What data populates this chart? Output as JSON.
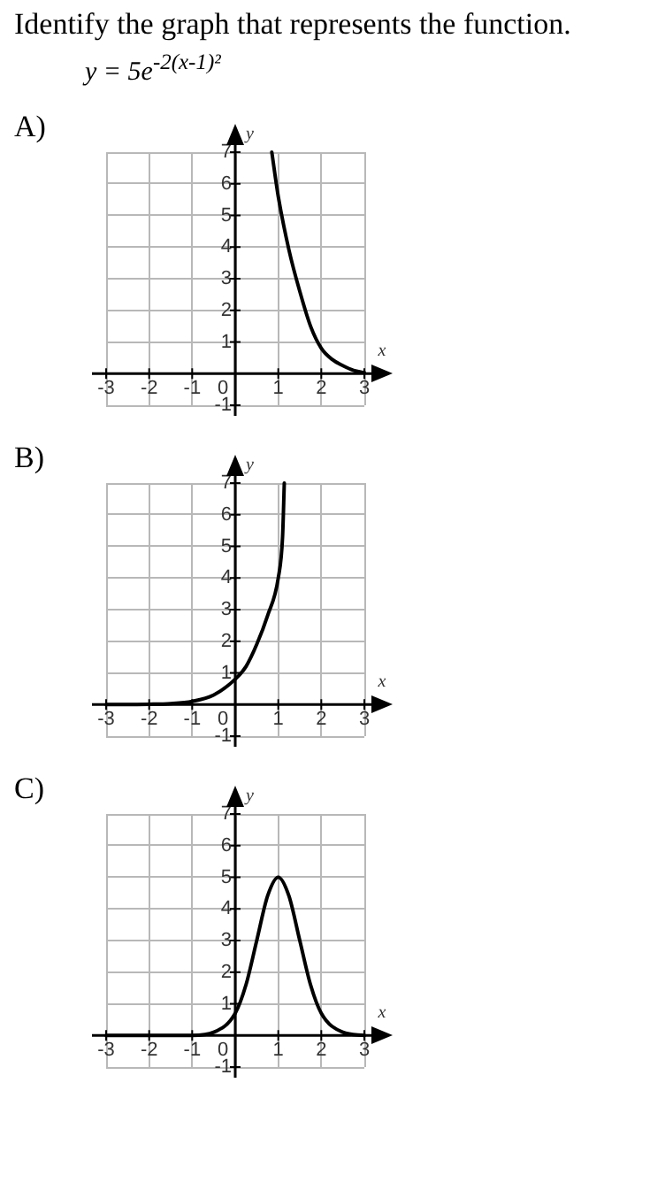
{
  "chart_data": [
    {
      "type": "other",
      "title": "Identify the graph that represents the function.",
      "subtitle": "y = 5e$^{-2(x-1)²}$"
    },
    {
      "type": "line",
      "title": "A)",
      "xlabel": "x",
      "ylabel": "y",
      "color": "#000000",
      "marker": "none",
      "grid": true,
      "x": [
        0.85,
        1,
        1.25,
        1.5,
        1.75,
        2,
        2.25,
        2.5,
        2.75,
        3
      ],
      "values": [
        7,
        5.6,
        3.9,
        2.6,
        1.5,
        0.8,
        0.45,
        0.25,
        0.1,
        0.03
      ],
      "xlim": [
        -3,
        3
      ],
      "ylim": [
        -1,
        7
      ],
      "xticks": [
        -3,
        -2,
        -1,
        0,
        1,
        2,
        3
      ],
      "yticks": [
        -1,
        1,
        2,
        3,
        4,
        5,
        6,
        7
      ]
    },
    {
      "type": "line",
      "title": "B)",
      "xlabel": "x",
      "ylabel": "y",
      "color": "#000000",
      "marker": "none",
      "grid": true,
      "x": [
        -3,
        -2,
        -1.5,
        -1,
        -0.5,
        0,
        0.25,
        0.5,
        0.75,
        1,
        1.1,
        1.14
      ],
      "values": [
        0,
        0.01,
        0.03,
        0.1,
        0.3,
        0.8,
        1.2,
        1.9,
        2.8,
        4,
        5.3,
        7
      ],
      "xlim": [
        -3,
        3
      ],
      "ylim": [
        -1,
        7
      ],
      "xticks": [
        -3,
        -2,
        -1,
        0,
        1,
        2,
        3
      ],
      "yticks": [
        -1,
        1,
        2,
        3,
        4,
        5,
        6,
        7
      ]
    },
    {
      "type": "line",
      "title": "C)",
      "xlabel": "x",
      "ylabel": "y",
      "color": "#000000",
      "marker": "none",
      "grid": true,
      "x": [
        -3,
        -1,
        -0.5,
        0,
        0.25,
        0.5,
        0.75,
        1,
        1.25,
        1.5,
        1.75,
        2,
        2.5,
        3
      ],
      "values": [
        0,
        0,
        0.1,
        0.7,
        1.6,
        3,
        4.4,
        5,
        4.4,
        3,
        1.6,
        0.7,
        0.1,
        0
      ],
      "xlim": [
        -3,
        3
      ],
      "ylim": [
        -1,
        7
      ],
      "xticks": [
        -3,
        -2,
        -1,
        0,
        1,
        2,
        3
      ],
      "yticks": [
        -1,
        1,
        2,
        3,
        4,
        5,
        6,
        7
      ]
    }
  ]
}
